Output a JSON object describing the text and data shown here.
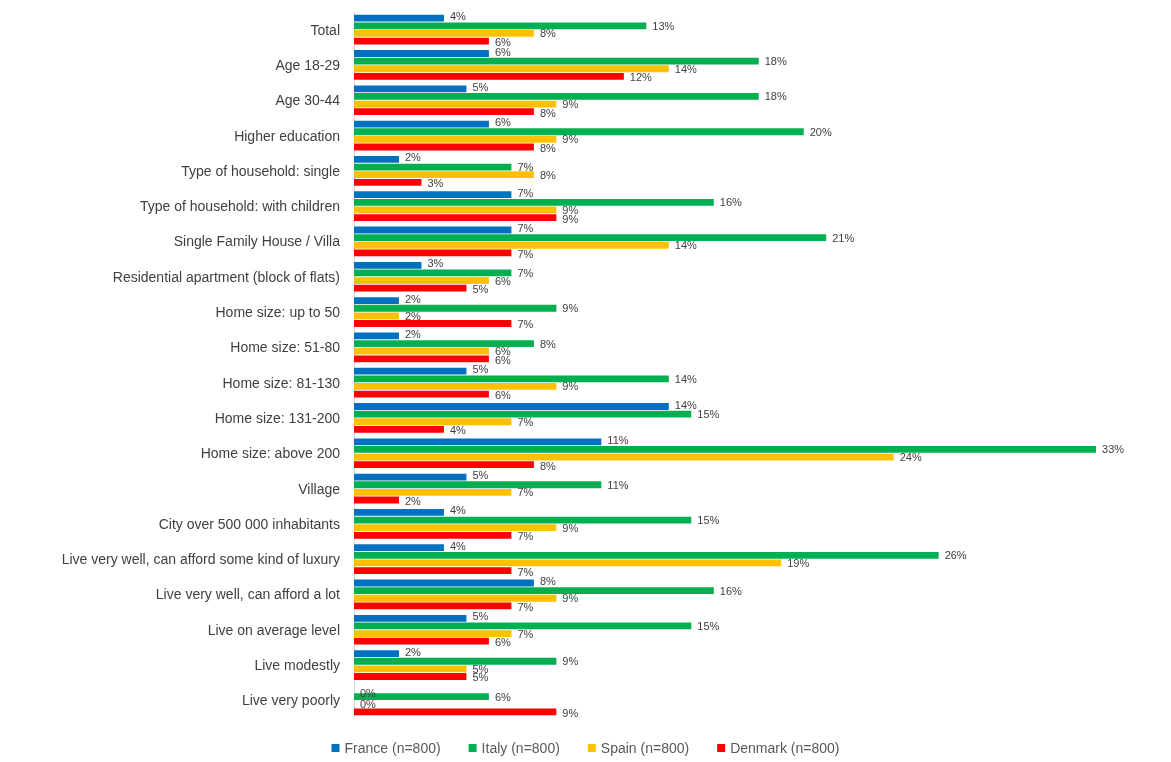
{
  "chart_data": {
    "type": "bar",
    "orientation": "horizontal",
    "legend": "bottom",
    "categories": [
      "Total",
      "Age 18-29",
      "Age 30-44",
      "Higher education",
      "Type of household: single",
      "Type of household: with children",
      "Single Family House / Villa",
      "Residential apartment (block of flats)",
      "Home size: up to 50",
      "Home size: 51-80",
      "Home size: 81-130",
      "Home size: 131-200",
      "Home size: above 200",
      "Village",
      "City over 500 000 inhabitants",
      "Live very well, can afford some kind of luxury",
      "Live very well, can afford a lot",
      "Live on average level",
      "Live modestly",
      "Live very poorly"
    ],
    "series": [
      {
        "name": "France (n=800)",
        "color": "#0070c0",
        "values": [
          4,
          6,
          5,
          6,
          2,
          7,
          7,
          3,
          2,
          2,
          5,
          14,
          11,
          5,
          4,
          4,
          8,
          5,
          2,
          0
        ],
        "value_labels": [
          "4%",
          "6%",
          "5%",
          "6%",
          "2%",
          "7%",
          "7%",
          "3%",
          "2%",
          "2%",
          "5%",
          "14%",
          "11%",
          "5%",
          "4%",
          "4%",
          "8%",
          "5%",
          "2%",
          "0%"
        ]
      },
      {
        "name": "Italy (n=800)",
        "color": "#00b050",
        "values": [
          13,
          18,
          18,
          20,
          7,
          16,
          21,
          7,
          9,
          8,
          14,
          15,
          33,
          11,
          15,
          26,
          16,
          15,
          9,
          6
        ],
        "value_labels": [
          "13%",
          "18%",
          "18%",
          "20%",
          "7%",
          "16%",
          "21%",
          "7%",
          "9%",
          "8%",
          "14%",
          "15%",
          "33%",
          "11%",
          "15%",
          "26%",
          "16%",
          "15%",
          "9%",
          "6%"
        ]
      },
      {
        "name": "Spain (n=800)",
        "color": "#ffc000",
        "values": [
          8,
          14,
          9,
          9,
          8,
          9,
          14,
          6,
          2,
          6,
          9,
          7,
          24,
          7,
          9,
          19,
          9,
          7,
          5,
          0
        ],
        "value_labels": [
          "8%",
          "14%",
          "9%",
          "9%",
          "8%",
          "9%",
          "14%",
          "6%",
          "2%",
          "6%",
          "9%",
          "7%",
          "24%",
          "7%",
          "9%",
          "19%",
          "9%",
          "7%",
          "5%",
          "0%"
        ]
      },
      {
        "name": "Denmark (n=800)",
        "color": "#ff0000",
        "values": [
          6,
          12,
          8,
          8,
          3,
          9,
          7,
          5,
          7,
          6,
          6,
          4,
          8,
          2,
          7,
          7,
          7,
          6,
          5,
          9
        ],
        "value_labels": [
          "6%",
          "12%",
          "8%",
          "8%",
          "3%",
          "9%",
          "7%",
          "5%",
          "7%",
          "6%",
          "6%",
          "4%",
          "8%",
          "2%",
          "7%",
          "7%",
          "7%",
          "6%",
          "5%",
          "9%"
        ]
      }
    ]
  }
}
